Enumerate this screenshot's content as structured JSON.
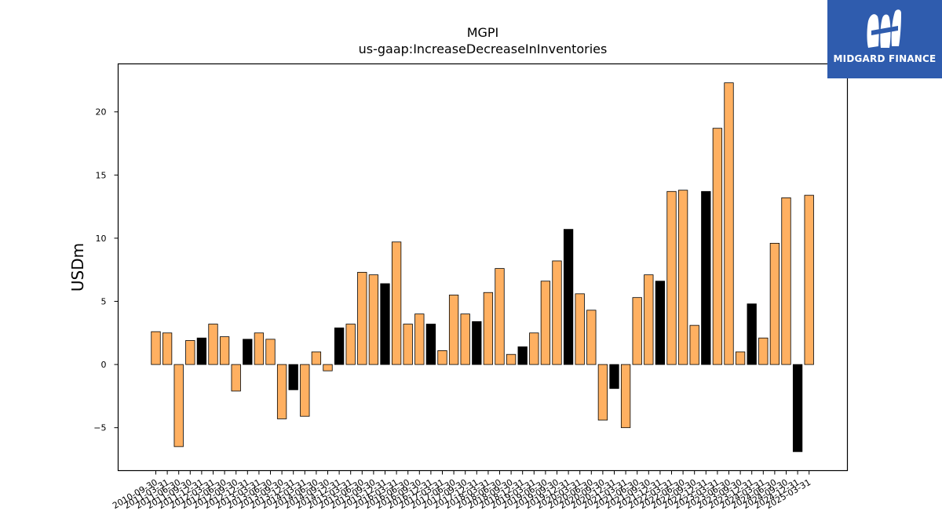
{
  "header": {
    "title": "MGPI",
    "subtitle": "us-gaap:IncreaseDecreaseInInventories"
  },
  "logo": {
    "text": "MIDGARD FINANCE",
    "background": "#2f5cae"
  },
  "colors": {
    "bar_default": "#ffb061",
    "bar_highlight": "#000000",
    "bar_edge": "#000000"
  },
  "chart_data": {
    "type": "bar",
    "title": "MGPI",
    "subtitle": "us-gaap:IncreaseDecreaseInInventories",
    "xlabel": "",
    "ylabel": "USDm",
    "ylim": [
      -8.4,
      23.8
    ],
    "yticks": [
      -5,
      0,
      5,
      10,
      15,
      20
    ],
    "ytick_labels": [
      "−5",
      "0",
      "5",
      "10",
      "15",
      "20"
    ],
    "grid": false,
    "legend": "none",
    "categories": [
      "2010-09-30",
      "2011-03-31",
      "2011-06-30",
      "2011-09-30",
      "2011-12-31",
      "2012-03-31",
      "2012-06-30",
      "2012-09-30",
      "2012-12-31",
      "2013-03-31",
      "2013-06-30",
      "2013-09-30",
      "2013-12-31",
      "2014-03-31",
      "2014-06-30",
      "2014-09-30",
      "2014-12-31",
      "2015-03-31",
      "2015-06-30",
      "2015-09-30",
      "2015-12-31",
      "2016-03-31",
      "2016-06-30",
      "2016-09-30",
      "2016-12-31",
      "2017-03-31",
      "2017-06-30",
      "2017-09-30",
      "2017-12-31",
      "2018-03-31",
      "2018-06-30",
      "2018-09-30",
      "2018-12-31",
      "2019-03-31",
      "2019-06-30",
      "2019-09-30",
      "2019-12-31",
      "2020-03-31",
      "2020-06-30",
      "2020-09-30",
      "2020-12-31",
      "2021-03-31",
      "2021-06-30",
      "2021-09-30",
      "2021-12-31",
      "2022-03-31",
      "2022-06-30",
      "2022-09-30",
      "2022-12-31",
      "2023-03-31",
      "2023-06-30",
      "2023-09-30",
      "2023-12-31",
      "2024-03-31",
      "2024-06-30",
      "2024-09-30",
      "2024-12-31",
      "2025-03-31"
    ],
    "values": [
      2.6,
      2.5,
      -6.5,
      1.9,
      2.1,
      3.2,
      2.2,
      -2.1,
      2.0,
      2.5,
      2.0,
      -4.3,
      -2.0,
      -4.1,
      1.0,
      -0.5,
      2.9,
      3.2,
      7.3,
      7.1,
      6.4,
      9.7,
      3.2,
      4.0,
      3.2,
      1.1,
      5.5,
      4.0,
      3.4,
      5.7,
      7.6,
      0.8,
      1.4,
      2.5,
      6.6,
      8.2,
      10.7,
      5.6,
      4.3,
      -4.4,
      -1.9,
      -5.0,
      5.3,
      7.1,
      6.6,
      13.7,
      13.8,
      3.1,
      13.7,
      18.7,
      22.3,
      1.0,
      4.8,
      2.1,
      9.6,
      13.2,
      -6.9,
      13.4
    ],
    "highlight": [
      false,
      false,
      false,
      false,
      true,
      false,
      false,
      false,
      true,
      false,
      false,
      false,
      true,
      false,
      false,
      false,
      true,
      false,
      false,
      false,
      true,
      false,
      false,
      false,
      true,
      false,
      false,
      false,
      true,
      false,
      false,
      false,
      true,
      false,
      false,
      false,
      true,
      false,
      false,
      false,
      true,
      false,
      false,
      false,
      true,
      false,
      false,
      false,
      true,
      false,
      false,
      false,
      true,
      false,
      false,
      false,
      true,
      false
    ]
  }
}
